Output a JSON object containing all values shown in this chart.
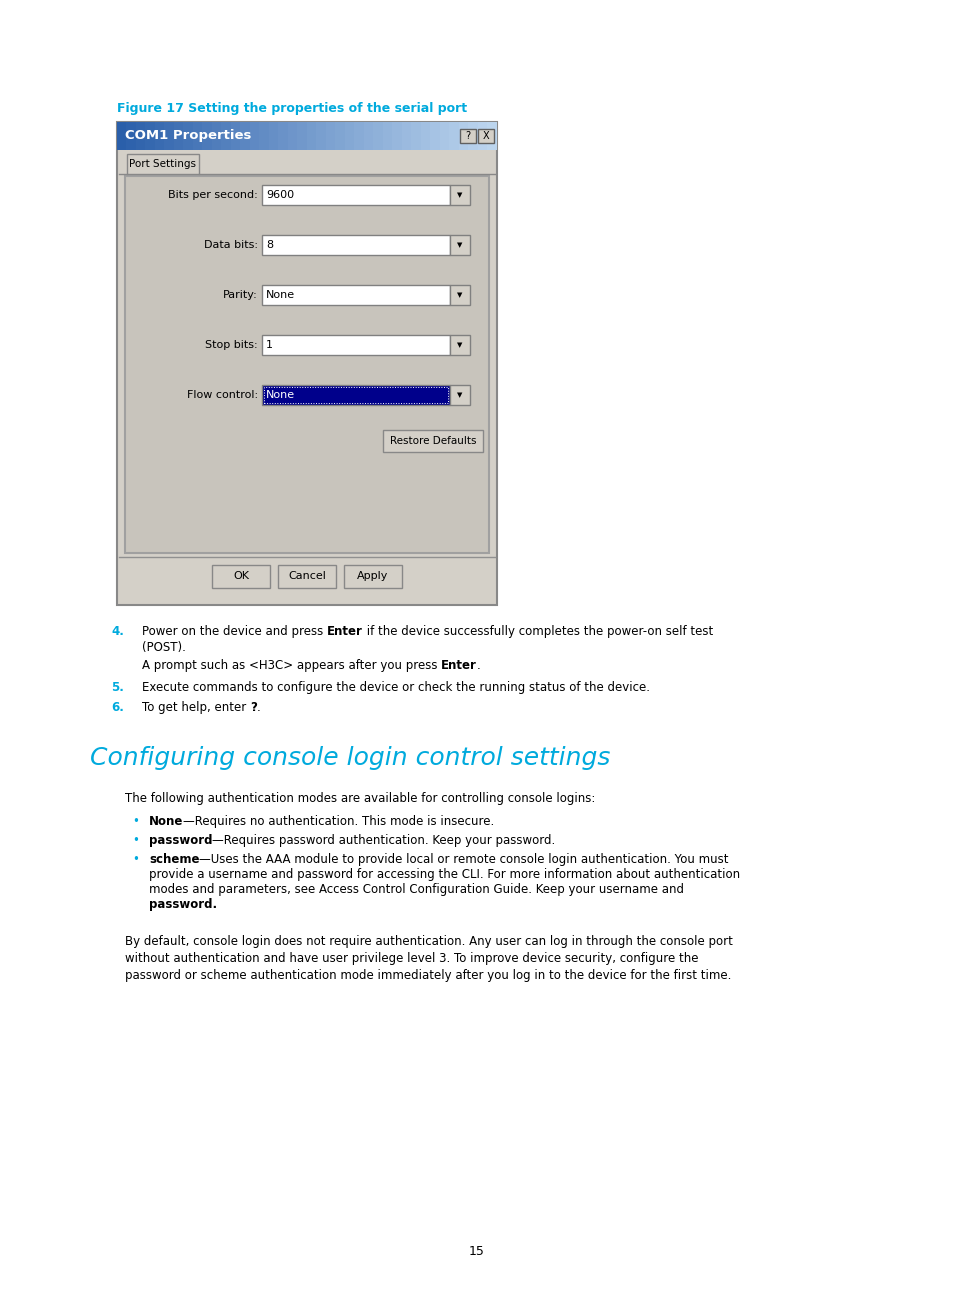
{
  "page_bg": "#ffffff",
  "figure_caption": "Figure 17 Setting the properties of the serial port",
  "figure_caption_color": "#00AADD",
  "dialog_title": "COM1 Properties",
  "dialog_bg": "#d4d0c8",
  "dialog_header_bg1": "#2a5faa",
  "dialog_header_bg2": "#c0d8f0",
  "tab_label": "Port Settings",
  "fields": [
    "Bits per second:",
    "Data bits:",
    "Parity:",
    "Stop bits:",
    "Flow control:"
  ],
  "values": [
    "9600",
    "8",
    "None",
    "1",
    "None"
  ],
  "restore_btn": "Restore Defaults",
  "ok_btn": "OK",
  "cancel_btn": "Cancel",
  "apply_btn": "Apply",
  "section_title": "Configuring console login control settings",
  "section_title_color": "#00AADD",
  "num_color": "#00AADD",
  "body_text": "The following authentication modes are available for controlling console logins:",
  "bullet_bold": [
    "None",
    "password",
    "scheme"
  ],
  "bullet_rest_line1": [
    "—Requires no authentication. This mode is insecure.",
    "—Requires password authentication. Keep your password.",
    "—Uses the AAA module to provide local or remote console login authentication. You must"
  ],
  "scheme_lines": [
    "provide a username and password for accessing the CLI. For more information about authentication",
    "modes and parameters, see Access Control Configuration Guide. Keep your username and",
    "password."
  ],
  "final_lines": [
    "By default, console login does not require authentication. Any user can log in through the console port",
    "without authentication and have user privilege level 3. To improve device security, configure the",
    "password or scheme authentication mode immediately after you log in to the device for the first time."
  ],
  "page_number": "15"
}
